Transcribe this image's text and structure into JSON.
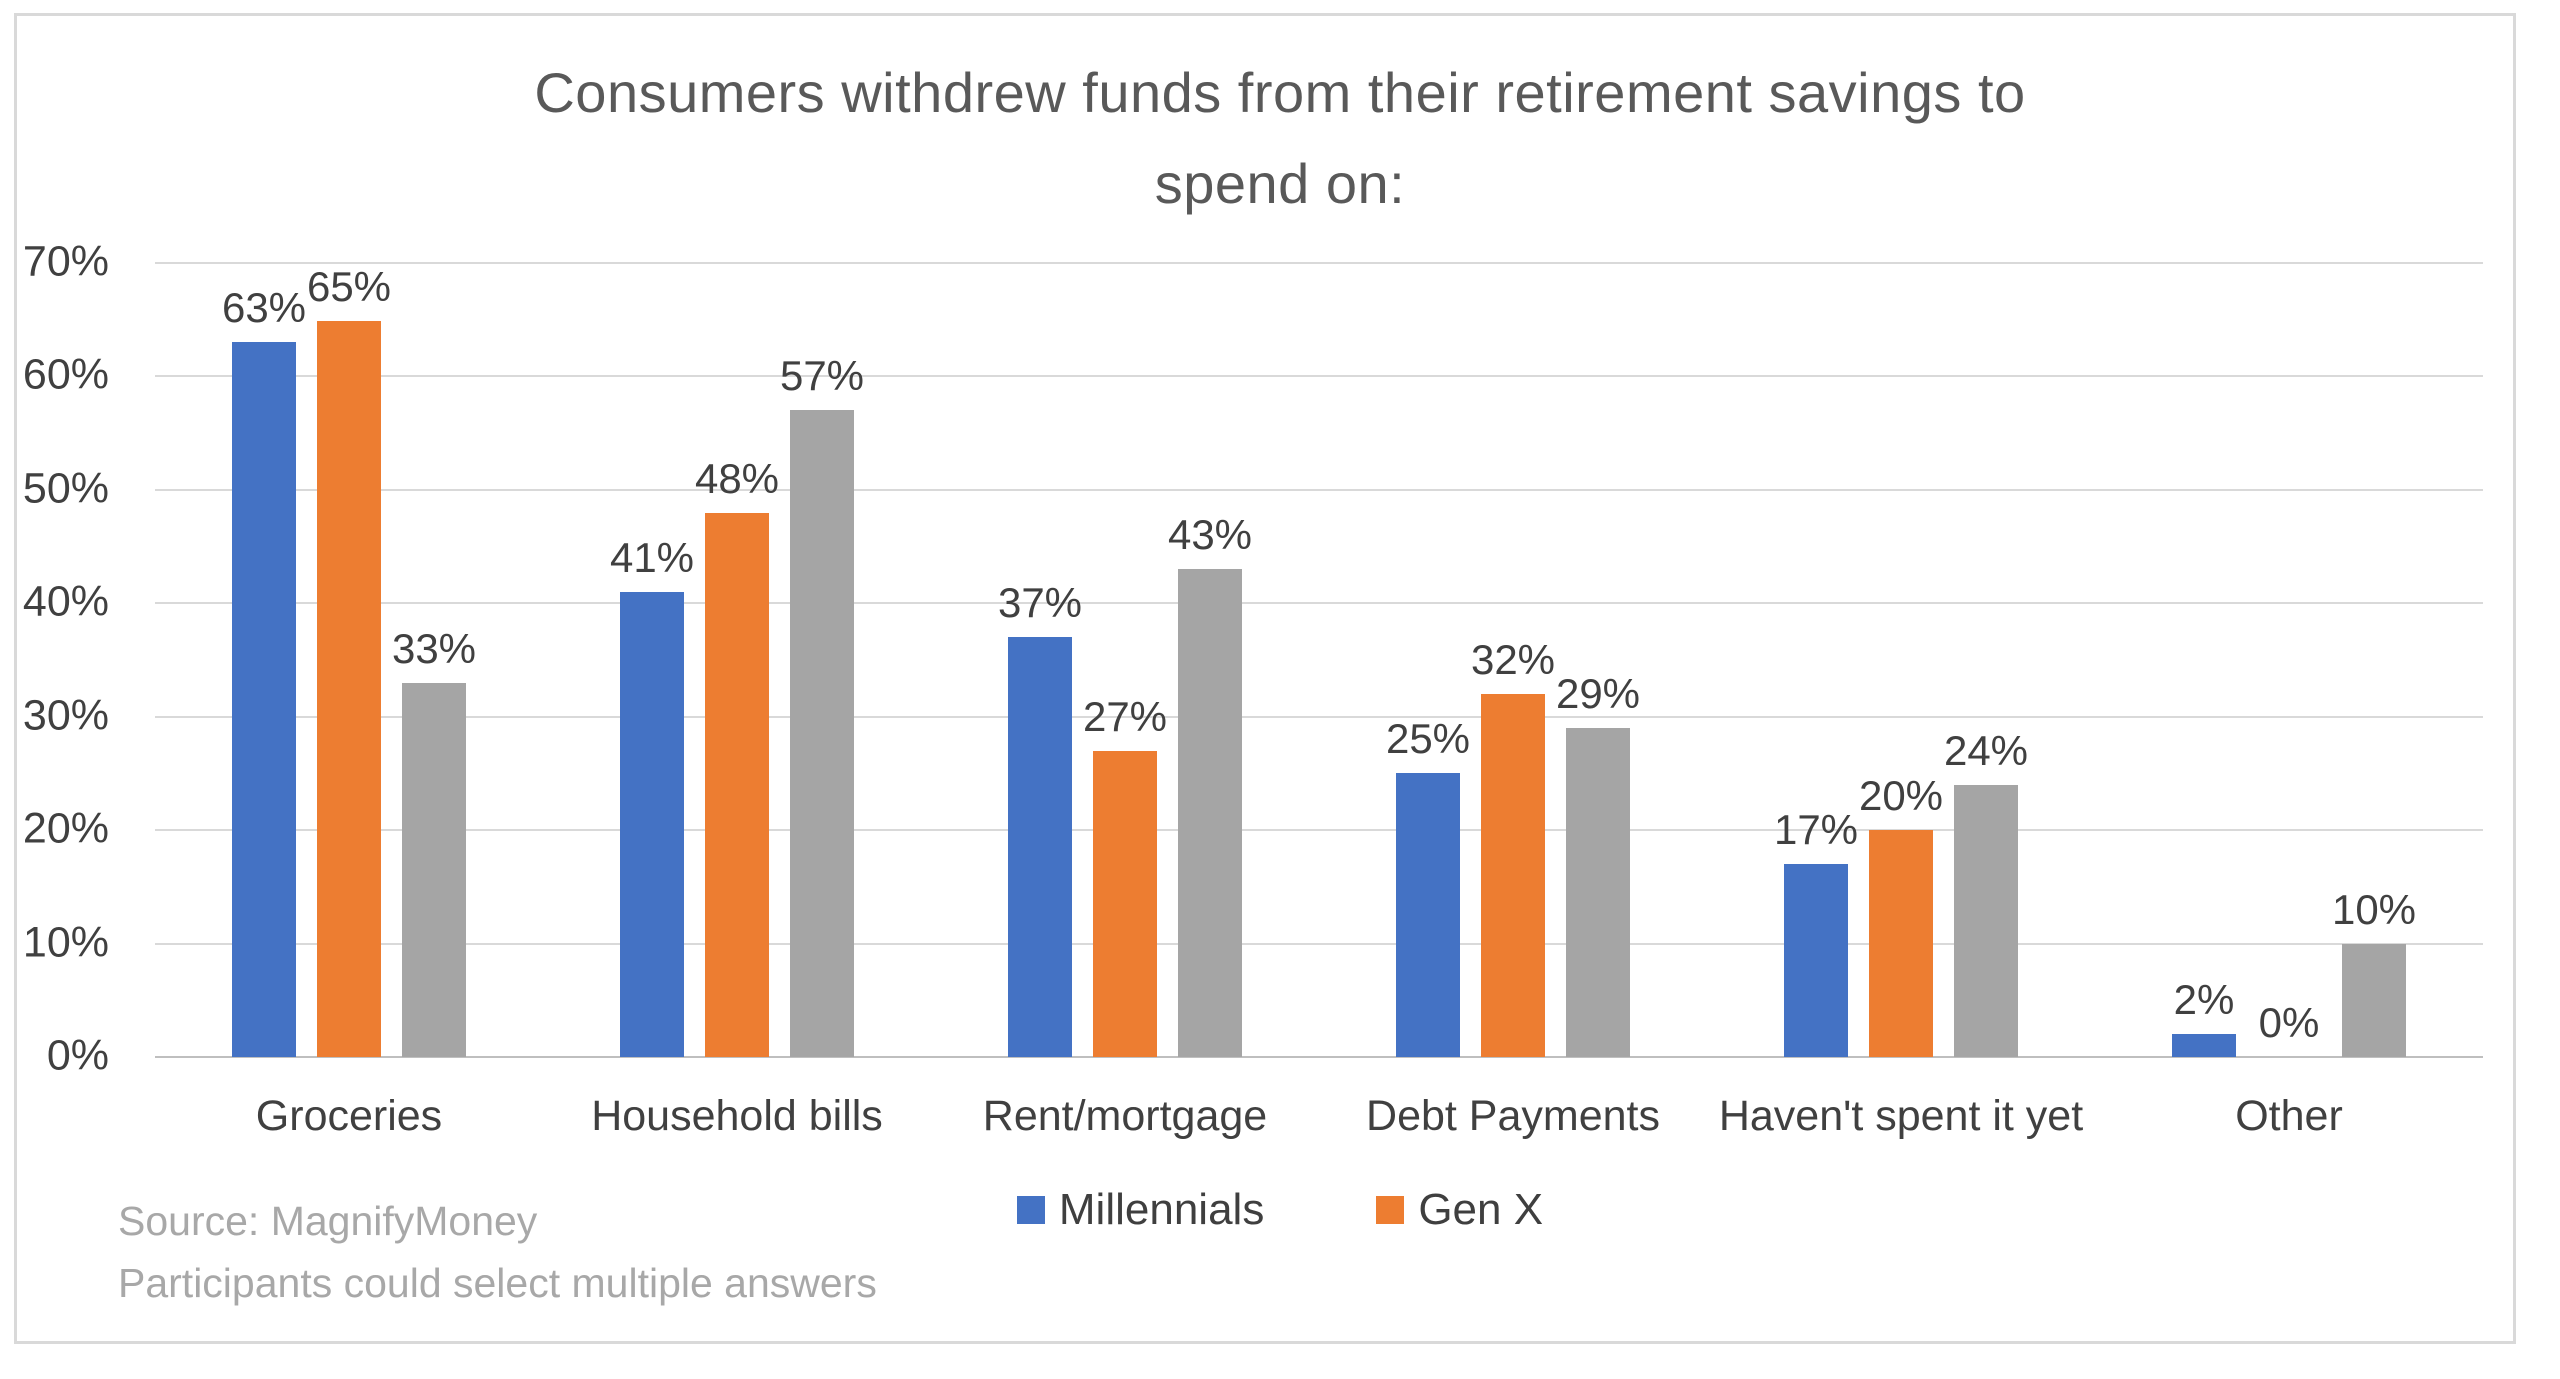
{
  "chart_data": {
    "type": "bar",
    "title": "Consumers withdrew funds from their retirement savings to spend on:",
    "title_lines": [
      "Consumers withdrew funds from their retirement savings to",
      "spend on:"
    ],
    "categories": [
      "Groceries",
      "Household bills",
      "Rent/mortgage",
      "Debt Payments",
      "Haven't spent it yet",
      "Other"
    ],
    "series": [
      {
        "name": "Millennials",
        "color": "#4472C4",
        "in_legend": true,
        "values": [
          63,
          41,
          37,
          25,
          17,
          2
        ],
        "labels": [
          "63%",
          "41%",
          "37%",
          "25%",
          "17%",
          "2%"
        ]
      },
      {
        "name": "Gen X",
        "color": "#ED7D31",
        "in_legend": true,
        "values": [
          65,
          48,
          27,
          32,
          20,
          0
        ],
        "labels": [
          "65%",
          "48%",
          "27%",
          "32%",
          "20%",
          "0%"
        ]
      },
      {
        "name": "",
        "color": "#A5A5A5",
        "in_legend": false,
        "values": [
          33,
          57,
          43,
          29,
          24,
          10
        ],
        "labels": [
          "33%",
          "57%",
          "43%",
          "29%",
          "24%",
          "10%"
        ]
      }
    ],
    "y_axis": {
      "min": 0,
      "max": 70,
      "tick_step": 10,
      "tick_labels": [
        "0%",
        "10%",
        "20%",
        "30%",
        "40%",
        "50%",
        "60%",
        "70%"
      ]
    },
    "grid": "horizontal",
    "legend": {
      "position": "bottom-center",
      "entries": [
        "Millennials",
        "Gen X"
      ]
    },
    "footnotes": [
      "Source: MagnifyMoney",
      "Participants could select multiple answers"
    ]
  },
  "colors": {
    "background": "#FFFFFF",
    "frame_border": "#D9D9D9",
    "title_text": "#595959",
    "axis_text": "#404040",
    "data_label_text": "#404040",
    "gridline": "#D9D9D9",
    "axis_line": "#BFBFBF",
    "legend_text": "#3F3F3F",
    "footnote_text": "#A8A8A8"
  }
}
